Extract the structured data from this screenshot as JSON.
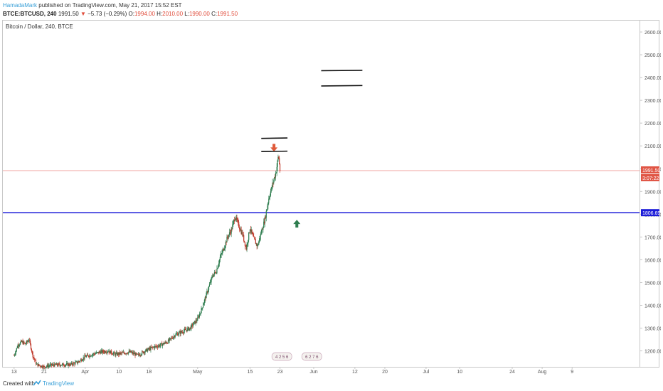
{
  "header": {
    "author": "HamadaMark",
    "published_text": "published on TradingView.com, May 21, 2017 15:52 EST",
    "symbol": "BTCE:BTCUSD, 240",
    "last": "1991.50",
    "change_arrow": "▼",
    "change": "−5.73 (−0.29%)",
    "o_label": "O:",
    "o": "1994.00",
    "h_label": "H:",
    "h": "2010.00",
    "l_label": "L:",
    "l": "1990.00",
    "c_label": "C:",
    "c": "1991.50"
  },
  "footer": {
    "created": "Created with",
    "brand": "TradingView"
  },
  "colors": {
    "up": "#2e7d4f",
    "down": "#c0392b",
    "support": "#1b1bd8",
    "last_line": "#f0a6a0",
    "last_label": "#e05545",
    "grid_border": "#c8c8c8"
  },
  "chart_data": {
    "type": "candlestick",
    "title": "Bitcoin / Dollar, 240, BTCE",
    "ylim": [
      1130,
      2650
    ],
    "y_ticks": [
      "1200.00",
      "1300.00",
      "1400.00",
      "1500.00",
      "1600.00",
      "1700.00",
      "1800.00",
      "1900.00",
      "2000.00",
      "2100.00",
      "2200.00",
      "2300.00",
      "2400.00",
      "2500.00",
      "2600.00"
    ],
    "x_labels": [
      {
        "label": "13",
        "day": 0
      },
      {
        "label": "21",
        "day": 8
      },
      {
        "label": "Apr",
        "day": 19
      },
      {
        "label": "10",
        "day": 28
      },
      {
        "label": "18",
        "day": 36
      },
      {
        "label": "May",
        "day": 49
      },
      {
        "label": "15",
        "day": 63
      },
      {
        "label": "23",
        "day": 71
      },
      {
        "label": "Jun",
        "day": 80
      },
      {
        "label": "12",
        "day": 91
      },
      {
        "label": "20",
        "day": 99
      },
      {
        "label": "Jul",
        "day": 110
      },
      {
        "label": "10",
        "day": 119
      },
      {
        "label": "24",
        "day": 133
      },
      {
        "label": "Aug",
        "day": 141
      },
      {
        "label": "9",
        "day": 149
      }
    ],
    "x_range_days": [
      -3,
      167
    ],
    "last_price": "1991.50",
    "countdown": "3:07:22",
    "support_level": "1806.69",
    "series": [
      [
        0,
        1180
      ],
      [
        1,
        1225
      ],
      [
        2,
        1240
      ],
      [
        3,
        1230
      ],
      [
        4,
        1250
      ],
      [
        5,
        1180
      ],
      [
        6,
        1140
      ],
      [
        8,
        1130
      ],
      [
        10,
        1138
      ],
      [
        15,
        1140
      ],
      [
        17,
        1150
      ],
      [
        19,
        1175
      ],
      [
        21,
        1185
      ],
      [
        23,
        1195
      ],
      [
        25,
        1200
      ],
      [
        27,
        1185
      ],
      [
        29,
        1190
      ],
      [
        31,
        1195
      ],
      [
        33,
        1180
      ],
      [
        35,
        1200
      ],
      [
        37,
        1215
      ],
      [
        39,
        1225
      ],
      [
        41,
        1240
      ],
      [
        43,
        1270
      ],
      [
        45,
        1285
      ],
      [
        47,
        1300
      ],
      [
        49,
        1340
      ],
      [
        50,
        1380
      ],
      [
        51,
        1430
      ],
      [
        52,
        1480
      ],
      [
        53,
        1530
      ],
      [
        54,
        1550
      ],
      [
        55,
        1610
      ],
      [
        56,
        1650
      ],
      [
        57,
        1700
      ],
      [
        58,
        1730
      ],
      [
        59,
        1790
      ],
      [
        60,
        1750
      ],
      [
        61,
        1710
      ],
      [
        62,
        1650
      ],
      [
        63,
        1740
      ],
      [
        64,
        1690
      ],
      [
        65,
        1660
      ],
      [
        66,
        1720
      ],
      [
        67,
        1780
      ],
      [
        68,
        1870
      ],
      [
        69,
        1930
      ],
      [
        70,
        1990
      ],
      [
        70.6,
        2060
      ],
      [
        71,
        1991.5
      ]
    ],
    "annotations": [
      {
        "type": "arrow_down",
        "day": 69.4,
        "price": 2090
      },
      {
        "type": "arrow_up",
        "day": 75.5,
        "price": 1760
      },
      {
        "type": "hline_segment",
        "day_from": 66,
        "day_to": 73,
        "price": 2133
      },
      {
        "type": "hline_segment",
        "day_from": 66,
        "day_to": 73,
        "price": 2075
      },
      {
        "type": "hline_segment",
        "day_from": 82,
        "day_to": 93,
        "price": 2430
      },
      {
        "type": "hline_segment",
        "day_from": 82,
        "day_to": 93,
        "price": 2363
      }
    ],
    "event_badges": [
      {
        "day": 71.5,
        "text": "4 2 5 6"
      },
      {
        "day": 79.5,
        "text": "6 2 7 6"
      }
    ]
  }
}
